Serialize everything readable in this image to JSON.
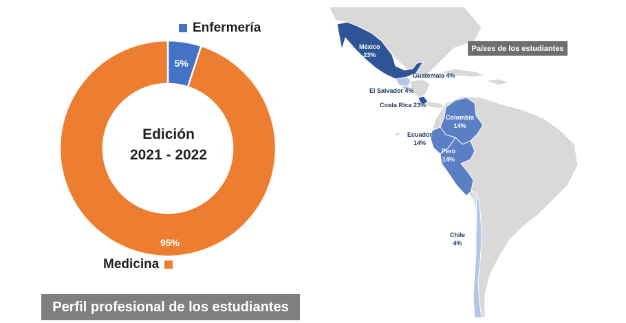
{
  "chart_data": [
    {
      "type": "pie",
      "subtype": "donut",
      "center_text": [
        "Edición",
        "2021 - 2022"
      ],
      "slices": [
        {
          "label": "Enfermería",
          "value": 5,
          "value_label": "5%",
          "color": "#4472c4"
        },
        {
          "label": "Medicina",
          "value": 95,
          "value_label": "95%",
          "color": "#ed7d31"
        }
      ],
      "legend": "split-top-bottom"
    }
  ],
  "caption": "Perfil profesional de los estudiantes",
  "map": {
    "title": "Países de los estudiantes",
    "colors": {
      "land": "#d9d9d9",
      "high": "#2f5597",
      "mid": "#5b7fc4",
      "low": "#b4c7e7"
    },
    "countries": [
      {
        "name": "México",
        "value": "23%",
        "level": "high"
      },
      {
        "name": "Guatemala 4%",
        "level": "low"
      },
      {
        "name": "El Salvador 4%",
        "level": "low"
      },
      {
        "name": "Costa Rica 23%",
        "level": "high"
      },
      {
        "name": "Colombia",
        "value": "14%",
        "level": "mid"
      },
      {
        "name": "Ecuador",
        "value": "14%",
        "level": "mid"
      },
      {
        "name": "Perú",
        "value": "14%",
        "level": "mid"
      },
      {
        "name": "Chile",
        "value": "4%",
        "level": "low"
      }
    ]
  }
}
